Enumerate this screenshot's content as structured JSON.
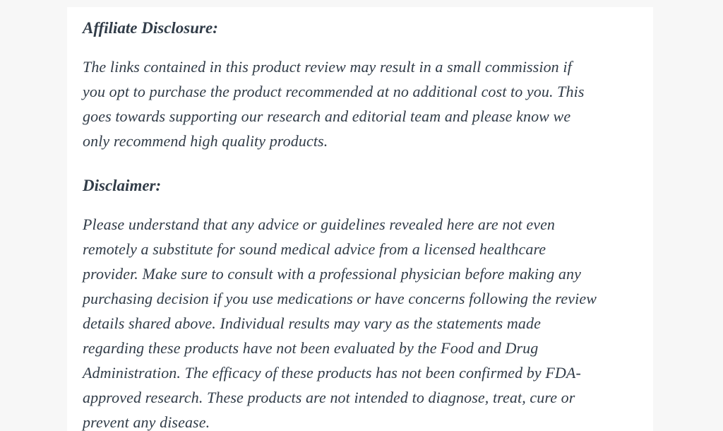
{
  "colors": {
    "page_background": "#f7f7f7",
    "content_background": "#ffffff",
    "text_color": "#313c48"
  },
  "article": {
    "affiliate": {
      "heading": "Affiliate Disclosure:",
      "text": "The links contained in this product review may result in a small commission if\nyou opt to purchase the product recommended at no additional cost to you. This\ngoes towards supporting our research and editorial team and please know we\nonly recommend high quality products."
    },
    "disclaimer": {
      "heading": "Disclaimer:",
      "text": "Please understand that any advice or guidelines revealed here are not even\nremotely a substitute for sound medical advice from a licensed healthcare\nprovider. Make sure to consult with a professional physician before making any\npurchasing decision if you use medications or have concerns following the review\ndetails shared above. Individual results may vary as the statements made\nregarding these products have not been evaluated by the Food and Drug\nAdministration. The efficacy of these products has not been confirmed by FDA-\napproved research. These products are not intended to diagnose, treat, cure or\nprevent any disease."
    }
  }
}
